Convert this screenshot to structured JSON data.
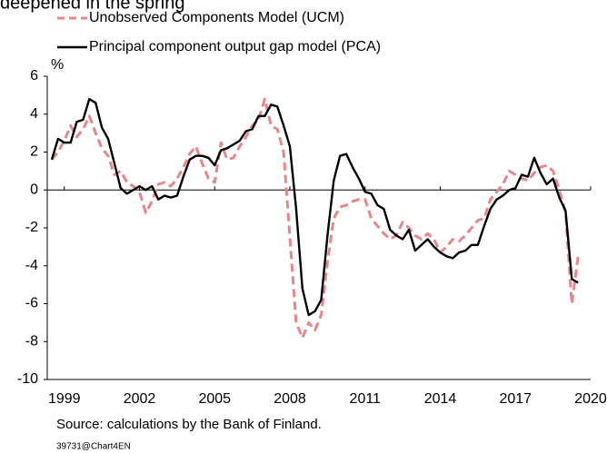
{
  "chart_data": {
    "type": "line",
    "title": "deepened in the spring",
    "y_label": "%",
    "source": "Source: calculations by the Bank of Finland.",
    "chart_id": "39731@Chart4EN",
    "x": [
      1998.5,
      1998.75,
      1999.0,
      1999.25,
      1999.5,
      1999.75,
      2000.0,
      2000.25,
      2000.5,
      2000.75,
      2001.0,
      2001.25,
      2001.5,
      2001.75,
      2002.0,
      2002.25,
      2002.5,
      2002.75,
      2003.0,
      2003.25,
      2003.5,
      2003.75,
      2004.0,
      2004.25,
      2004.5,
      2004.75,
      2005.0,
      2005.25,
      2005.5,
      2005.75,
      2006.0,
      2006.25,
      2006.5,
      2006.75,
      2007.0,
      2007.25,
      2007.5,
      2007.75,
      2008.0,
      2008.25,
      2008.5,
      2008.75,
      2009.0,
      2009.25,
      2009.5,
      2009.75,
      2010.0,
      2010.25,
      2010.5,
      2010.75,
      2011.0,
      2011.25,
      2011.5,
      2011.75,
      2012.0,
      2012.25,
      2012.5,
      2012.75,
      2013.0,
      2013.25,
      2013.5,
      2013.75,
      2014.0,
      2014.25,
      2014.5,
      2014.75,
      2015.0,
      2015.25,
      2015.5,
      2015.75,
      2016.0,
      2016.25,
      2016.5,
      2016.75,
      2017.0,
      2017.25,
      2017.5,
      2017.75,
      2018.0,
      2018.25,
      2018.5,
      2018.75,
      2019.0,
      2019.25,
      2019.5
    ],
    "series": [
      {
        "name": "Unobserved Components Model (UCM)",
        "color": "#e8868c",
        "dashed": true,
        "values": [
          1.6,
          2.0,
          2.6,
          3.4,
          2.8,
          3.2,
          3.9,
          3.0,
          2.2,
          1.8,
          0.8,
          1.0,
          0.4,
          0.2,
          -0.1,
          -1.2,
          -0.6,
          0.3,
          0.4,
          0.2,
          0.6,
          1.2,
          1.9,
          2.3,
          1.4,
          0.6,
          0.4,
          2.5,
          1.6,
          1.7,
          2.3,
          2.8,
          3.4,
          3.7,
          4.8,
          3.4,
          3.2,
          2.0,
          -2.5,
          -7.0,
          -7.8,
          -7.0,
          -7.4,
          -6.6,
          -3.8,
          -1.5,
          -0.9,
          -0.8,
          -0.6,
          -0.5,
          -0.5,
          -1.5,
          -1.9,
          -2.3,
          -2.6,
          -2.4,
          -1.7,
          -2.0,
          -2.4,
          -2.6,
          -2.3,
          -2.6,
          -3.3,
          -3.0,
          -2.6,
          -2.7,
          -2.4,
          -2.0,
          -1.6,
          -1.5,
          -0.5,
          -0.1,
          0.3,
          1.0,
          0.8,
          0.6,
          0.5,
          0.9,
          1.2,
          1.3,
          1.0,
          0.0,
          -1.2,
          -6.0,
          -3.5
        ]
      },
      {
        "name": "Principal component output gap model (PCA)",
        "color": "#000000",
        "dashed": false,
        "values": [
          1.6,
          2.7,
          2.5,
          2.5,
          3.6,
          3.7,
          4.8,
          4.6,
          3.3,
          2.7,
          1.4,
          0.1,
          -0.2,
          0.0,
          0.2,
          0.0,
          0.2,
          -0.5,
          -0.3,
          -0.4,
          -0.3,
          0.7,
          1.6,
          1.8,
          1.8,
          1.7,
          1.3,
          2.1,
          2.2,
          2.4,
          2.6,
          3.1,
          3.2,
          3.9,
          3.9,
          4.5,
          4.4,
          3.4,
          2.3,
          -1.0,
          -5.2,
          -6.6,
          -6.4,
          -5.8,
          -2.4,
          0.5,
          1.8,
          1.9,
          1.2,
          0.6,
          -0.1,
          -0.2,
          -0.8,
          -1.0,
          -2.1,
          -2.4,
          -2.6,
          -2.1,
          -3.2,
          -2.9,
          -2.6,
          -3.0,
          -3.3,
          -3.5,
          -3.6,
          -3.3,
          -3.2,
          -2.9,
          -2.9,
          -1.9,
          -1.0,
          -0.5,
          -0.3,
          0.0,
          0.1,
          0.8,
          0.7,
          1.7,
          0.9,
          0.3,
          0.6,
          -0.4,
          -1.1,
          -4.7,
          -4.9
        ]
      }
    ],
    "xlim": [
      1998.32,
      2020.0
    ],
    "xticks": [
      1999,
      2002,
      2005,
      2008,
      2011,
      2014,
      2017,
      2020
    ],
    "ylim": [
      -10,
      6
    ],
    "yticks": [
      -10,
      -8,
      -6,
      -4,
      -2,
      0,
      2,
      4,
      6
    ],
    "grid": false
  }
}
